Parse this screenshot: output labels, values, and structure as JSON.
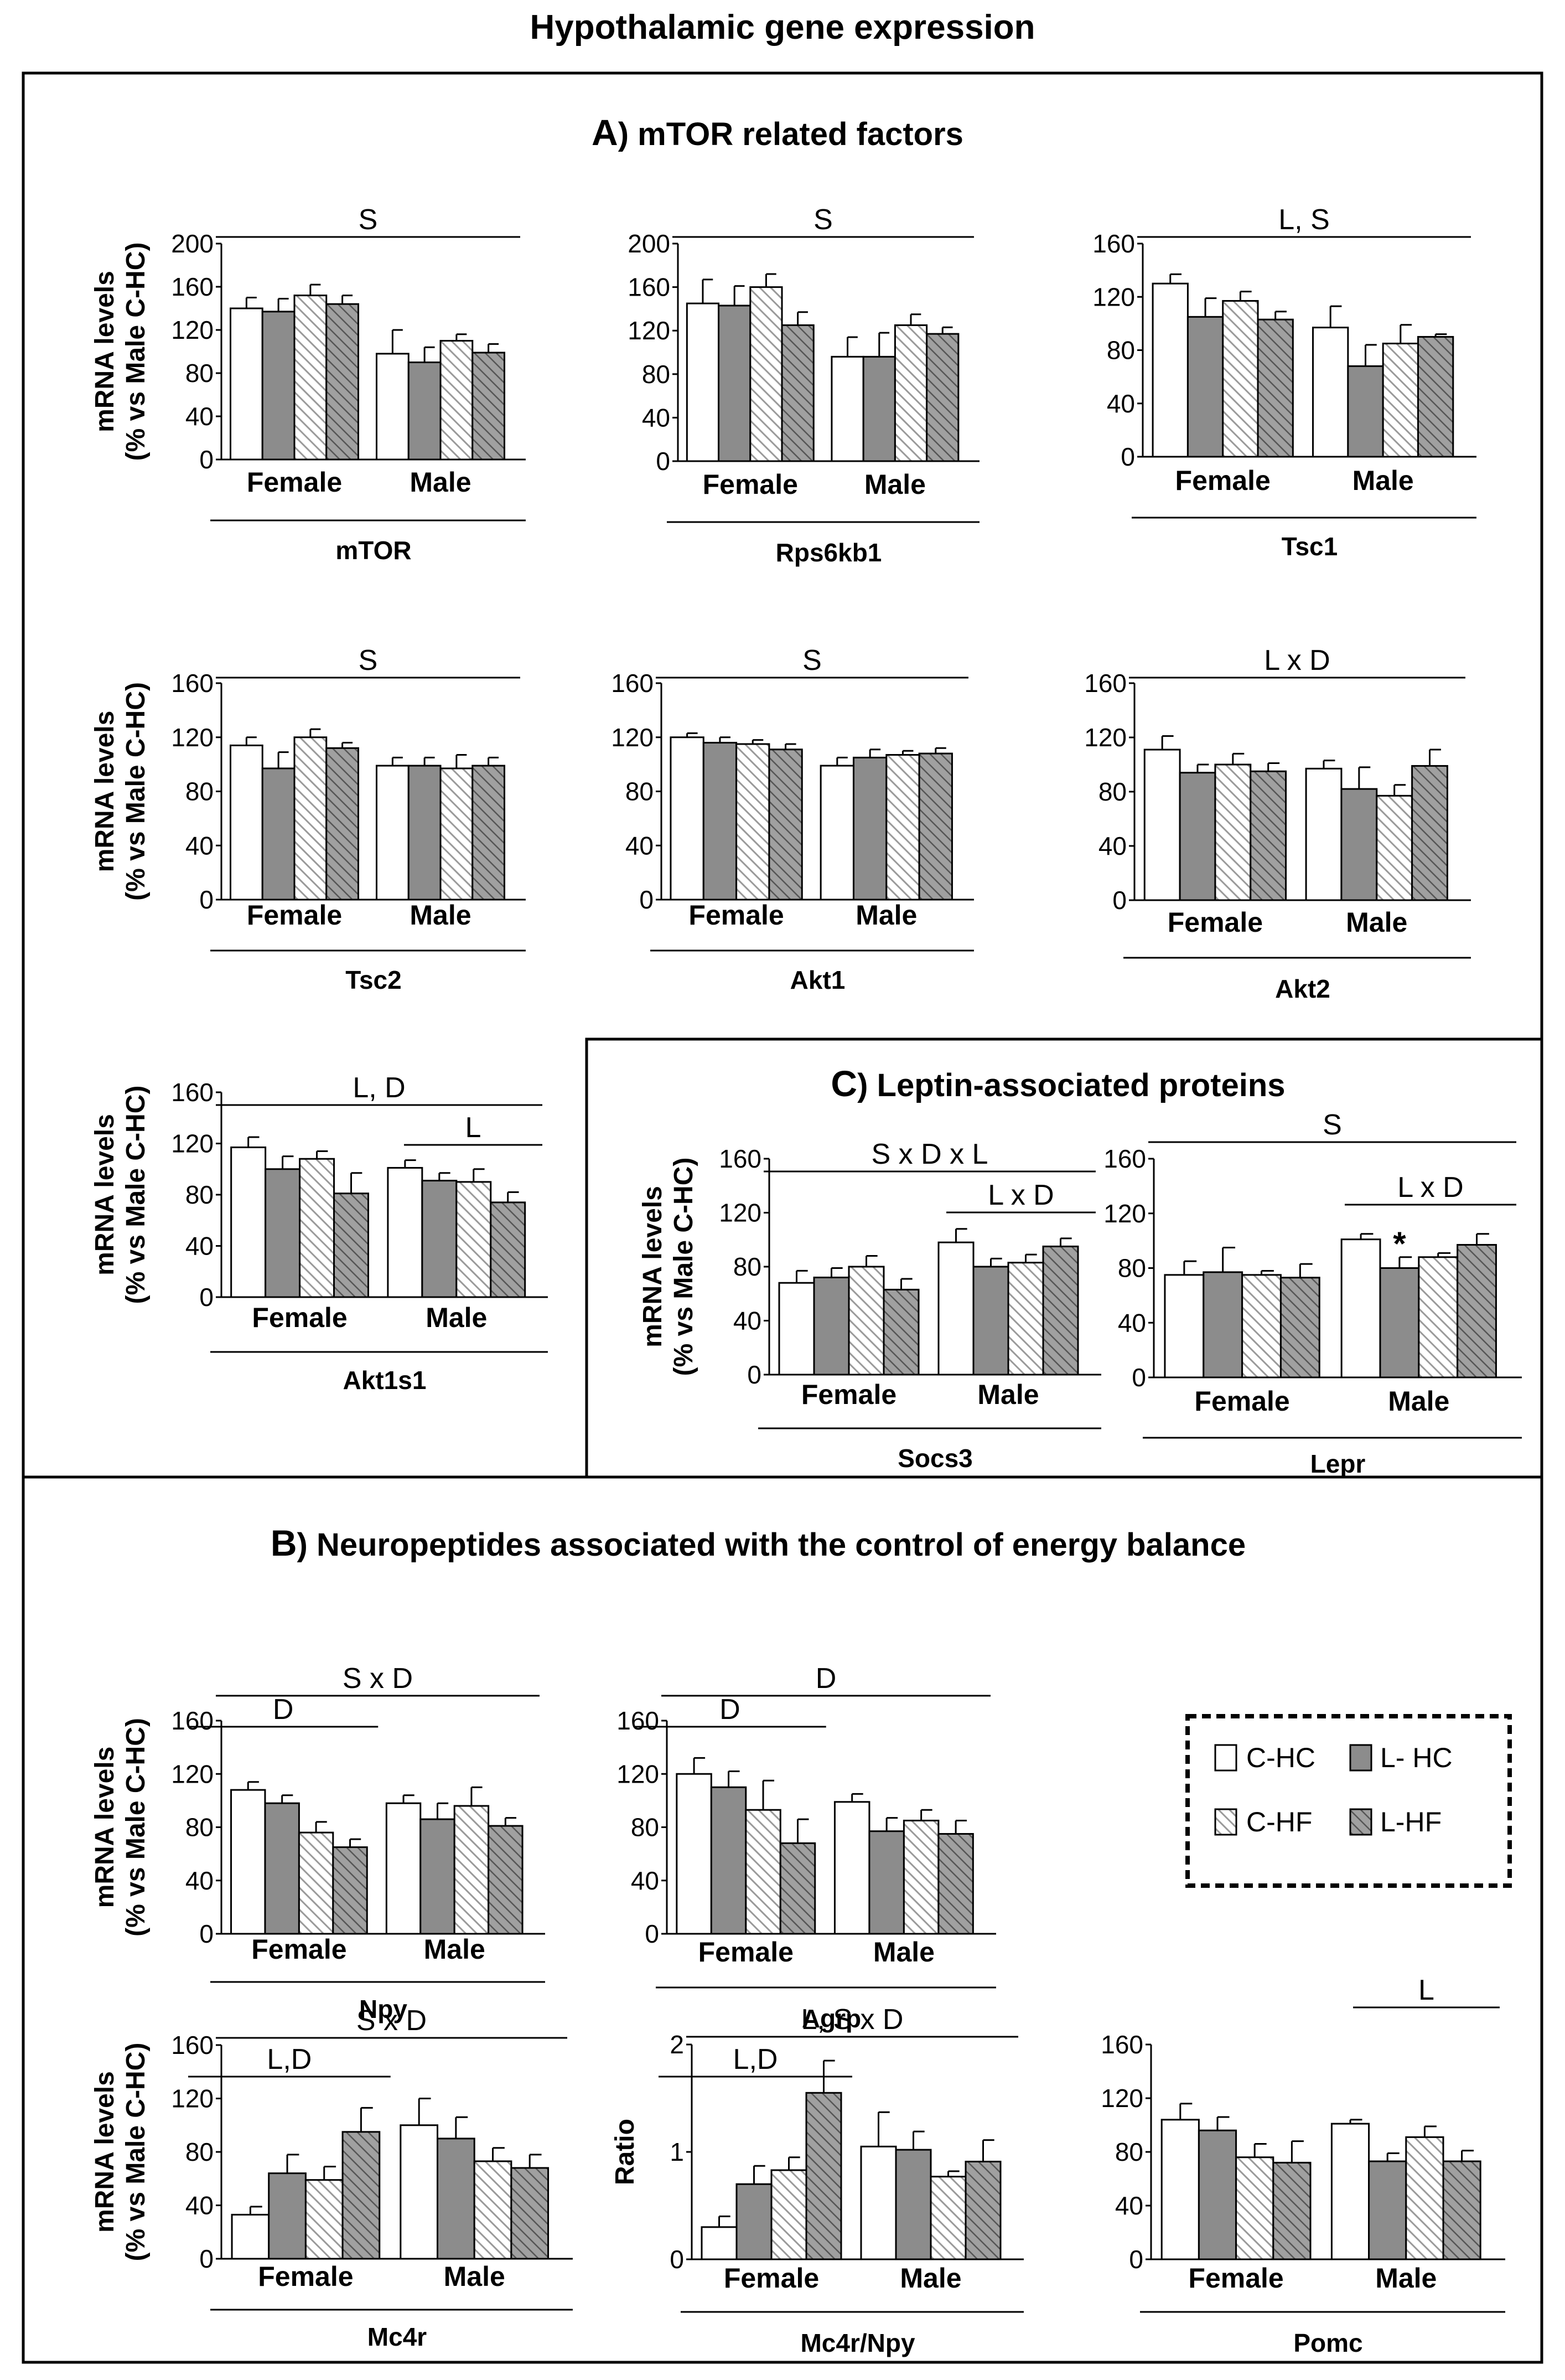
{
  "title": "Hypothalamic gene expression",
  "legend": {
    "items": [
      {
        "label": "C-HC",
        "pattern": "white"
      },
      {
        "label": "L- HC",
        "pattern": "gray"
      },
      {
        "label": "C-HF",
        "pattern": "hatch-light"
      },
      {
        "label": "L-HF",
        "pattern": "hatch-dark"
      }
    ]
  },
  "chart_data": {
    "type": "bar",
    "group_labels": [
      "Female",
      "Male"
    ],
    "series_names": [
      "C-HC",
      "L- HC",
      "C-HF",
      "L-HF"
    ],
    "shared_ylabel": [
      "mRNA levels",
      "(% vs Male C-HC)"
    ],
    "sections": [
      {
        "id": "A",
        "letter": "A",
        "title": ") mTOR related factors"
      },
      {
        "id": "B",
        "letter": "B",
        "title": ") Neuropeptides associated with the control of energy balance"
      },
      {
        "id": "C",
        "letter": "C",
        "title": ") Leptin-associated proteins"
      }
    ],
    "panels": [
      {
        "gene": "mTOR",
        "section": "A",
        "ylim": [
          0,
          200
        ],
        "yticks": [
          0,
          40,
          80,
          120,
          160,
          200
        ],
        "female": [
          140,
          137,
          152,
          144
        ],
        "male": [
          98,
          90,
          110,
          99
        ],
        "female_err": [
          10,
          12,
          10,
          8
        ],
        "male_err": [
          22,
          14,
          6,
          8
        ],
        "annotations": [
          {
            "text": "S",
            "span": "all"
          }
        ]
      },
      {
        "gene": "Rps6kb1",
        "section": "A",
        "ylim": [
          0,
          200
        ],
        "yticks": [
          0,
          40,
          80,
          120,
          160,
          200
        ],
        "female": [
          145,
          143,
          160,
          125
        ],
        "male": [
          96,
          96,
          125,
          117
        ],
        "female_err": [
          22,
          18,
          12,
          12
        ],
        "male_err": [
          18,
          22,
          10,
          6
        ],
        "annotations": [
          {
            "text": "S",
            "span": "all"
          }
        ]
      },
      {
        "gene": "Tsc1",
        "section": "A",
        "ylim": [
          0,
          160
        ],
        "yticks": [
          0,
          40,
          80,
          120,
          160
        ],
        "female": [
          130,
          105,
          117,
          103
        ],
        "male": [
          97,
          68,
          85,
          90
        ],
        "female_err": [
          7,
          14,
          7,
          6
        ],
        "male_err": [
          16,
          16,
          14,
          2
        ],
        "annotations": [
          {
            "text": "L, S",
            "span": "all"
          }
        ]
      },
      {
        "gene": "Tsc2",
        "section": "A",
        "ylim": [
          0,
          160
        ],
        "yticks": [
          0,
          40,
          80,
          120,
          160
        ],
        "female": [
          114,
          97,
          120,
          112
        ],
        "male": [
          99,
          99,
          97,
          99
        ],
        "female_err": [
          6,
          12,
          6,
          4
        ],
        "male_err": [
          6,
          6,
          10,
          6
        ],
        "annotations": [
          {
            "text": "S",
            "span": "all"
          }
        ]
      },
      {
        "gene": "Akt1",
        "section": "A",
        "ylim": [
          0,
          160
        ],
        "yticks": [
          0,
          40,
          80,
          120,
          160
        ],
        "female": [
          120,
          116,
          115,
          111
        ],
        "male": [
          99,
          105,
          107,
          108
        ],
        "female_err": [
          3,
          4,
          3,
          4
        ],
        "male_err": [
          6,
          6,
          3,
          4
        ],
        "annotations": [
          {
            "text": "S",
            "span": "all"
          }
        ]
      },
      {
        "gene": "Akt2",
        "section": "A",
        "ylim": [
          0,
          160
        ],
        "yticks": [
          0,
          40,
          80,
          120,
          160
        ],
        "female": [
          111,
          94,
          100,
          95
        ],
        "male": [
          97,
          82,
          77,
          99
        ],
        "female_err": [
          10,
          6,
          8,
          6
        ],
        "male_err": [
          6,
          16,
          8,
          12
        ],
        "annotations": [
          {
            "text": "L x D",
            "span": "all"
          }
        ]
      },
      {
        "gene": "Akt1s1",
        "section": "A",
        "ylim": [
          0,
          160
        ],
        "yticks": [
          0,
          40,
          80,
          120,
          160
        ],
        "female": [
          117,
          100,
          108,
          81
        ],
        "male": [
          101,
          91,
          90,
          74
        ],
        "female_err": [
          8,
          10,
          6,
          16
        ],
        "male_err": [
          6,
          6,
          10,
          8
        ],
        "annotations": [
          {
            "text": "L, D",
            "span": "all"
          },
          {
            "text": "L",
            "span": "male"
          }
        ]
      },
      {
        "gene": "Socs3",
        "section": "C",
        "ylim": [
          0,
          160
        ],
        "yticks": [
          0,
          40,
          80,
          120,
          160
        ],
        "female": [
          68,
          72,
          80,
          63
        ],
        "male": [
          98,
          80,
          83,
          95
        ],
        "female_err": [
          9,
          7,
          8,
          8
        ],
        "male_err": [
          10,
          6,
          6,
          6
        ],
        "annotations": [
          {
            "text": "S x D x L",
            "span": "all"
          },
          {
            "text": "L x D",
            "span": "male"
          }
        ]
      },
      {
        "gene": "Lepr",
        "section": "C",
        "ylim": [
          0,
          160
        ],
        "yticks": [
          0,
          40,
          80,
          120,
          160
        ],
        "female": [
          75,
          77,
          75,
          73
        ],
        "male": [
          101,
          80,
          88,
          97
        ],
        "female_err": [
          10,
          18,
          3,
          10
        ],
        "male_err": [
          4,
          8,
          3,
          8
        ],
        "annotations": [
          {
            "text": "S",
            "span": "all"
          },
          {
            "text": "L x D",
            "span": "male"
          }
        ],
        "stars": [
          {
            "text": "*",
            "series": 1,
            "group": "male"
          }
        ]
      },
      {
        "gene": "Npy",
        "section": "B",
        "ylim": [
          0,
          160
        ],
        "yticks": [
          0,
          40,
          80,
          120,
          160
        ],
        "female": [
          108,
          98,
          76,
          65
        ],
        "male": [
          98,
          86,
          96,
          81
        ],
        "female_err": [
          6,
          6,
          8,
          6
        ],
        "male_err": [
          6,
          12,
          14,
          6
        ],
        "annotations": [
          {
            "text": "S x D",
            "span": "all"
          },
          {
            "text": "D",
            "span": "female"
          }
        ]
      },
      {
        "gene": "Agrp",
        "section": "B",
        "ylim": [
          0,
          160
        ],
        "yticks": [
          0,
          40,
          80,
          120,
          160
        ],
        "female": [
          120,
          110,
          93,
          68
        ],
        "male": [
          99,
          77,
          85,
          75
        ],
        "female_err": [
          12,
          12,
          22,
          18
        ],
        "male_err": [
          6,
          10,
          8,
          10
        ],
        "annotations": [
          {
            "text": "D",
            "span": "all"
          },
          {
            "text": "D",
            "span": "female"
          }
        ]
      },
      {
        "gene": "Mc4r",
        "section": "B",
        "ylim": [
          0,
          160
        ],
        "yticks": [
          0,
          40,
          80,
          120,
          160
        ],
        "female": [
          33,
          64,
          59,
          95
        ],
        "male": [
          100,
          90,
          73,
          68
        ],
        "female_err": [
          6,
          14,
          10,
          18
        ],
        "male_err": [
          20,
          16,
          10,
          10
        ],
        "annotations": [
          {
            "text": "S x D",
            "span": "all"
          },
          {
            "text": "L,D",
            "span": "female"
          }
        ]
      },
      {
        "gene": "Mc4r/Npy",
        "section": "B",
        "ylabel": "Ratio",
        "ylim": [
          0,
          2
        ],
        "yticks": [
          0,
          1,
          2
        ],
        "female": [
          0.3,
          0.7,
          0.83,
          1.55
        ],
        "male": [
          1.05,
          1.02,
          0.77,
          0.91
        ],
        "female_err": [
          0.1,
          0.17,
          0.12,
          0.3
        ],
        "male_err": [
          0.32,
          0.17,
          0.05,
          0.2
        ],
        "annotations": [
          {
            "text": "L, S x D",
            "span": "all"
          },
          {
            "text": "L,D",
            "span": "female"
          }
        ]
      },
      {
        "gene": "Pomc",
        "section": "B",
        "ylim": [
          0,
          160
        ],
        "yticks": [
          0,
          40,
          80,
          120,
          160
        ],
        "female": [
          104,
          96,
          76,
          72
        ],
        "male": [
          101,
          73,
          91,
          73
        ],
        "female_err": [
          12,
          10,
          10,
          16
        ],
        "male_err": [
          3,
          6,
          8,
          8
        ],
        "annotations": [
          {
            "text": "L",
            "span": "male"
          }
        ]
      }
    ]
  }
}
